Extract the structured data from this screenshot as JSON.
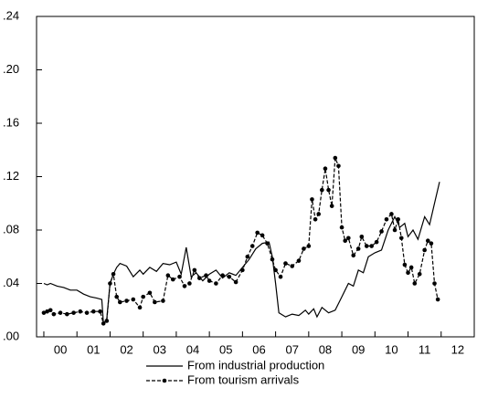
{
  "chart_data": {
    "type": "line",
    "xlim": [
      1999.78,
      2013
    ],
    "ylim": [
      0,
      0.24
    ],
    "xticks": [
      {
        "value": 2000,
        "label": "00"
      },
      {
        "value": 2001,
        "label": "01"
      },
      {
        "value": 2002,
        "label": "02"
      },
      {
        "value": 2003,
        "label": "03"
      },
      {
        "value": 2004,
        "label": "04"
      },
      {
        "value": 2005,
        "label": "05"
      },
      {
        "value": 2006,
        "label": "06"
      },
      {
        "value": 2007,
        "label": "07"
      },
      {
        "value": 2008,
        "label": "08"
      },
      {
        "value": 2009,
        "label": "09"
      },
      {
        "value": 2010,
        "label": "10"
      },
      {
        "value": 2011,
        "label": "11"
      },
      {
        "value": 2012,
        "label": "12"
      }
    ],
    "yticks": [
      {
        "value": 0,
        "label": ".00"
      },
      {
        "value": 0.04,
        "label": ".04"
      },
      {
        "value": 0.08,
        "label": ".08"
      },
      {
        "value": 0.12,
        "label": ".12"
      },
      {
        "value": 0.16,
        "label": ".16"
      },
      {
        "value": 0.2,
        "label": ".20"
      },
      {
        "value": 0.24,
        "label": ".24"
      }
    ],
    "series": [
      {
        "name": "From industrial production",
        "color": "#000000",
        "dash": false,
        "marker": false,
        "x": [
          2000.0,
          2000.1,
          2000.2,
          2000.4,
          2000.6,
          2000.8,
          2001.0,
          2001.2,
          2001.4,
          2001.6,
          2001.75,
          2001.8,
          2001.9,
          2002.0,
          2002.1,
          2002.2,
          2002.3,
          2002.5,
          2002.7,
          2002.9,
          2003.0,
          2003.2,
          2003.4,
          2003.6,
          2003.8,
          2004.0,
          2004.15,
          2004.3,
          2004.45,
          2004.6,
          2004.8,
          2005.0,
          2005.2,
          2005.4,
          2005.6,
          2005.8,
          2006.0,
          2006.2,
          2006.4,
          2006.6,
          2006.8,
          2006.9,
          2007.0,
          2007.1,
          2007.3,
          2007.5,
          2007.7,
          2007.9,
          2008.0,
          2008.15,
          2008.25,
          2008.4,
          2008.6,
          2008.8,
          2009.0,
          2009.2,
          2009.35,
          2009.5,
          2009.65,
          2009.8,
          2010.0,
          2010.2,
          2010.4,
          2010.6,
          2010.75,
          2010.9,
          2011.0,
          2011.15,
          2011.3,
          2011.5,
          2011.65,
          2011.8,
          2011.95
        ],
        "values": [
          0.04,
          0.039,
          0.04,
          0.038,
          0.037,
          0.035,
          0.035,
          0.032,
          0.03,
          0.029,
          0.028,
          0.01,
          0.013,
          0.04,
          0.047,
          0.052,
          0.055,
          0.053,
          0.045,
          0.05,
          0.047,
          0.052,
          0.049,
          0.055,
          0.054,
          0.056,
          0.047,
          0.067,
          0.045,
          0.048,
          0.042,
          0.047,
          0.05,
          0.044,
          0.048,
          0.046,
          0.052,
          0.058,
          0.066,
          0.07,
          0.071,
          0.06,
          0.04,
          0.018,
          0.015,
          0.017,
          0.016,
          0.02,
          0.017,
          0.021,
          0.015,
          0.022,
          0.018,
          0.02,
          0.03,
          0.04,
          0.038,
          0.05,
          0.048,
          0.06,
          0.063,
          0.065,
          0.08,
          0.09,
          0.082,
          0.085,
          0.075,
          0.08,
          0.073,
          0.09,
          0.084,
          0.1,
          0.116
        ]
      },
      {
        "name": "From tourism arrivals",
        "color": "#000000",
        "dash": true,
        "marker": true,
        "x": [
          2000.0,
          2000.1,
          2000.2,
          2000.3,
          2000.5,
          2000.7,
          2000.9,
          2001.1,
          2001.3,
          2001.5,
          2001.7,
          2001.8,
          2001.9,
          2002.0,
          2002.1,
          2002.2,
          2002.3,
          2002.5,
          2002.7,
          2002.9,
          2003.0,
          2003.2,
          2003.35,
          2003.6,
          2003.75,
          2003.9,
          2004.1,
          2004.25,
          2004.4,
          2004.55,
          2004.7,
          2004.9,
          2005.0,
          2005.2,
          2005.4,
          2005.6,
          2005.8,
          2006.0,
          2006.15,
          2006.3,
          2006.45,
          2006.6,
          2006.75,
          2006.9,
          2007.0,
          2007.15,
          2007.3,
          2007.5,
          2007.7,
          2007.85,
          2008.0,
          2008.1,
          2008.2,
          2008.3,
          2008.4,
          2008.5,
          2008.6,
          2008.7,
          2008.8,
          2008.9,
          2009.0,
          2009.1,
          2009.2,
          2009.35,
          2009.5,
          2009.6,
          2009.75,
          2009.9,
          2010.05,
          2010.2,
          2010.35,
          2010.5,
          2010.6,
          2010.7,
          2010.8,
          2010.9,
          2011.0,
          2011.1,
          2011.2,
          2011.35,
          2011.5,
          2011.6,
          2011.7,
          2011.8,
          2011.9
        ],
        "values": [
          0.018,
          0.019,
          0.02,
          0.017,
          0.018,
          0.017,
          0.018,
          0.019,
          0.018,
          0.019,
          0.019,
          0.01,
          0.012,
          0.04,
          0.047,
          0.03,
          0.026,
          0.027,
          0.028,
          0.022,
          0.03,
          0.033,
          0.026,
          0.027,
          0.046,
          0.043,
          0.045,
          0.038,
          0.04,
          0.05,
          0.044,
          0.046,
          0.042,
          0.04,
          0.046,
          0.045,
          0.041,
          0.05,
          0.06,
          0.068,
          0.078,
          0.076,
          0.07,
          0.058,
          0.05,
          0.045,
          0.055,
          0.053,
          0.057,
          0.066,
          0.068,
          0.103,
          0.088,
          0.092,
          0.11,
          0.126,
          0.11,
          0.098,
          0.134,
          0.128,
          0.082,
          0.072,
          0.074,
          0.061,
          0.066,
          0.075,
          0.068,
          0.068,
          0.071,
          0.079,
          0.088,
          0.092,
          0.08,
          0.088,
          0.074,
          0.054,
          0.048,
          0.052,
          0.04,
          0.047,
          0.065,
          0.072,
          0.07,
          0.04,
          0.028
        ]
      }
    ]
  }
}
